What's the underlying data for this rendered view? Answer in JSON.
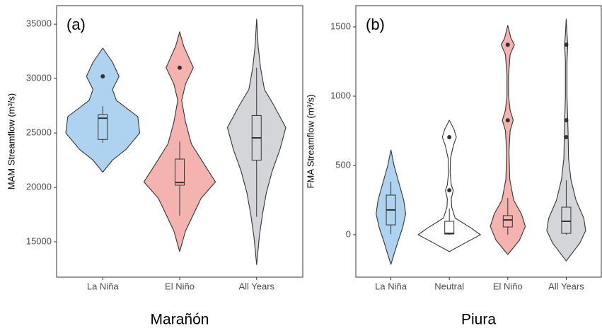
{
  "chart_data": [
    {
      "type": "violin",
      "panel_label": "(a)",
      "title": "Marañón",
      "y_label": "MAM Streamflow (m³/s)",
      "categories": [
        "La Niña",
        "El Niño",
        "All Years"
      ],
      "colors": [
        "#add3f1",
        "#f4b3ae",
        "#d3d5d9"
      ],
      "ylim": [
        11750,
        36700
      ],
      "yticks": [
        15000,
        20000,
        25000,
        30000,
        35000
      ],
      "violins": [
        {
          "box": [
            24100,
            24400,
            26360,
            26700,
            27470
          ],
          "outliers": [
            30200
          ],
          "profile_y": [
            32800,
            31500,
            30200,
            29000,
            28000,
            26500,
            25000,
            23500,
            22500,
            21400
          ],
          "profile_w": [
            0,
            0.25,
            0.42,
            0.25,
            0.35,
            0.9,
            0.95,
            0.6,
            0.25,
            0
          ]
        },
        {
          "box": [
            17400,
            20200,
            20450,
            22600,
            24200
          ],
          "outliers": [
            31000
          ],
          "profile_y": [
            34300,
            33000,
            31000,
            29500,
            28000,
            26000,
            24000,
            22000,
            20500,
            19000,
            17500,
            16000,
            14100
          ],
          "profile_w": [
            0,
            0.1,
            0.35,
            0.15,
            0.05,
            0.15,
            0.3,
            0.65,
            0.92,
            0.55,
            0.35,
            0.15,
            0
          ]
        },
        {
          "box": [
            17300,
            22500,
            24550,
            26600,
            31000
          ],
          "outliers": [],
          "profile_y": [
            35450,
            33000,
            31000,
            29000,
            27500,
            25500,
            23500,
            21500,
            19500,
            17500,
            15500,
            12900
          ],
          "profile_w": [
            0,
            0.04,
            0.1,
            0.2,
            0.45,
            0.75,
            0.6,
            0.4,
            0.25,
            0.15,
            0.07,
            0
          ]
        }
      ]
    },
    {
      "type": "violin",
      "panel_label": "(b)",
      "title": "Piura",
      "y_label": "FMA Streamflow (m³/s)",
      "categories": [
        "La Niña",
        "Neutral",
        "El Niño",
        "All Years"
      ],
      "colors": [
        "#add3f1",
        "#ffffff",
        "#f4b3ae",
        "#d3d5d9"
      ],
      "ylim": [
        -306,
        1653
      ],
      "yticks": [
        0,
        500,
        1000,
        1500
      ],
      "violins": [
        {
          "box": [
            5,
            71,
            179,
            286,
            383
          ],
          "outliers": [],
          "profile_y": [
            612,
            500,
            380,
            250,
            150,
            50,
            -50,
            -150,
            -214
          ],
          "profile_w": [
            0,
            0.08,
            0.2,
            0.33,
            0.38,
            0.3,
            0.18,
            0.07,
            0
          ]
        },
        {
          "box": [
            0,
            5,
            10,
            97,
            189
          ],
          "outliers": [
            704,
            321
          ],
          "profile_y": [
            826,
            760,
            704,
            640,
            550,
            450,
            360,
            320,
            260,
            200,
            120,
            50,
            0,
            -60,
            -122
          ],
          "profile_w": [
            0,
            0.12,
            0.18,
            0.1,
            0.03,
            0.02,
            0.05,
            0.1,
            0.05,
            0.06,
            0.15,
            0.55,
            0.8,
            0.4,
            0
          ]
        },
        {
          "box": [
            0,
            56,
            107,
            138,
            265
          ],
          "outliers": [
            1371,
            826
          ],
          "profile_y": [
            1510,
            1420,
            1371,
            1300,
            1150,
            1000,
            900,
            826,
            750,
            600,
            400,
            250,
            150,
            60,
            -40,
            -143
          ],
          "profile_w": [
            0,
            0.08,
            0.17,
            0.06,
            0.02,
            0.02,
            0.06,
            0.14,
            0.06,
            0.03,
            0.05,
            0.15,
            0.35,
            0.45,
            0.3,
            0
          ]
        },
        {
          "box": [
            0,
            10,
            97,
            199,
            393
          ],
          "outliers": [
            1371,
            826,
            704
          ],
          "profile_y": [
            1556,
            1450,
            1371,
            1250,
            1000,
            826,
            704,
            550,
            400,
            250,
            120,
            30,
            -60,
            -189
          ],
          "profile_w": [
            0,
            0.02,
            0.04,
            0.02,
            0.02,
            0.04,
            0.05,
            0.06,
            0.12,
            0.25,
            0.45,
            0.5,
            0.35,
            0
          ]
        }
      ]
    }
  ]
}
